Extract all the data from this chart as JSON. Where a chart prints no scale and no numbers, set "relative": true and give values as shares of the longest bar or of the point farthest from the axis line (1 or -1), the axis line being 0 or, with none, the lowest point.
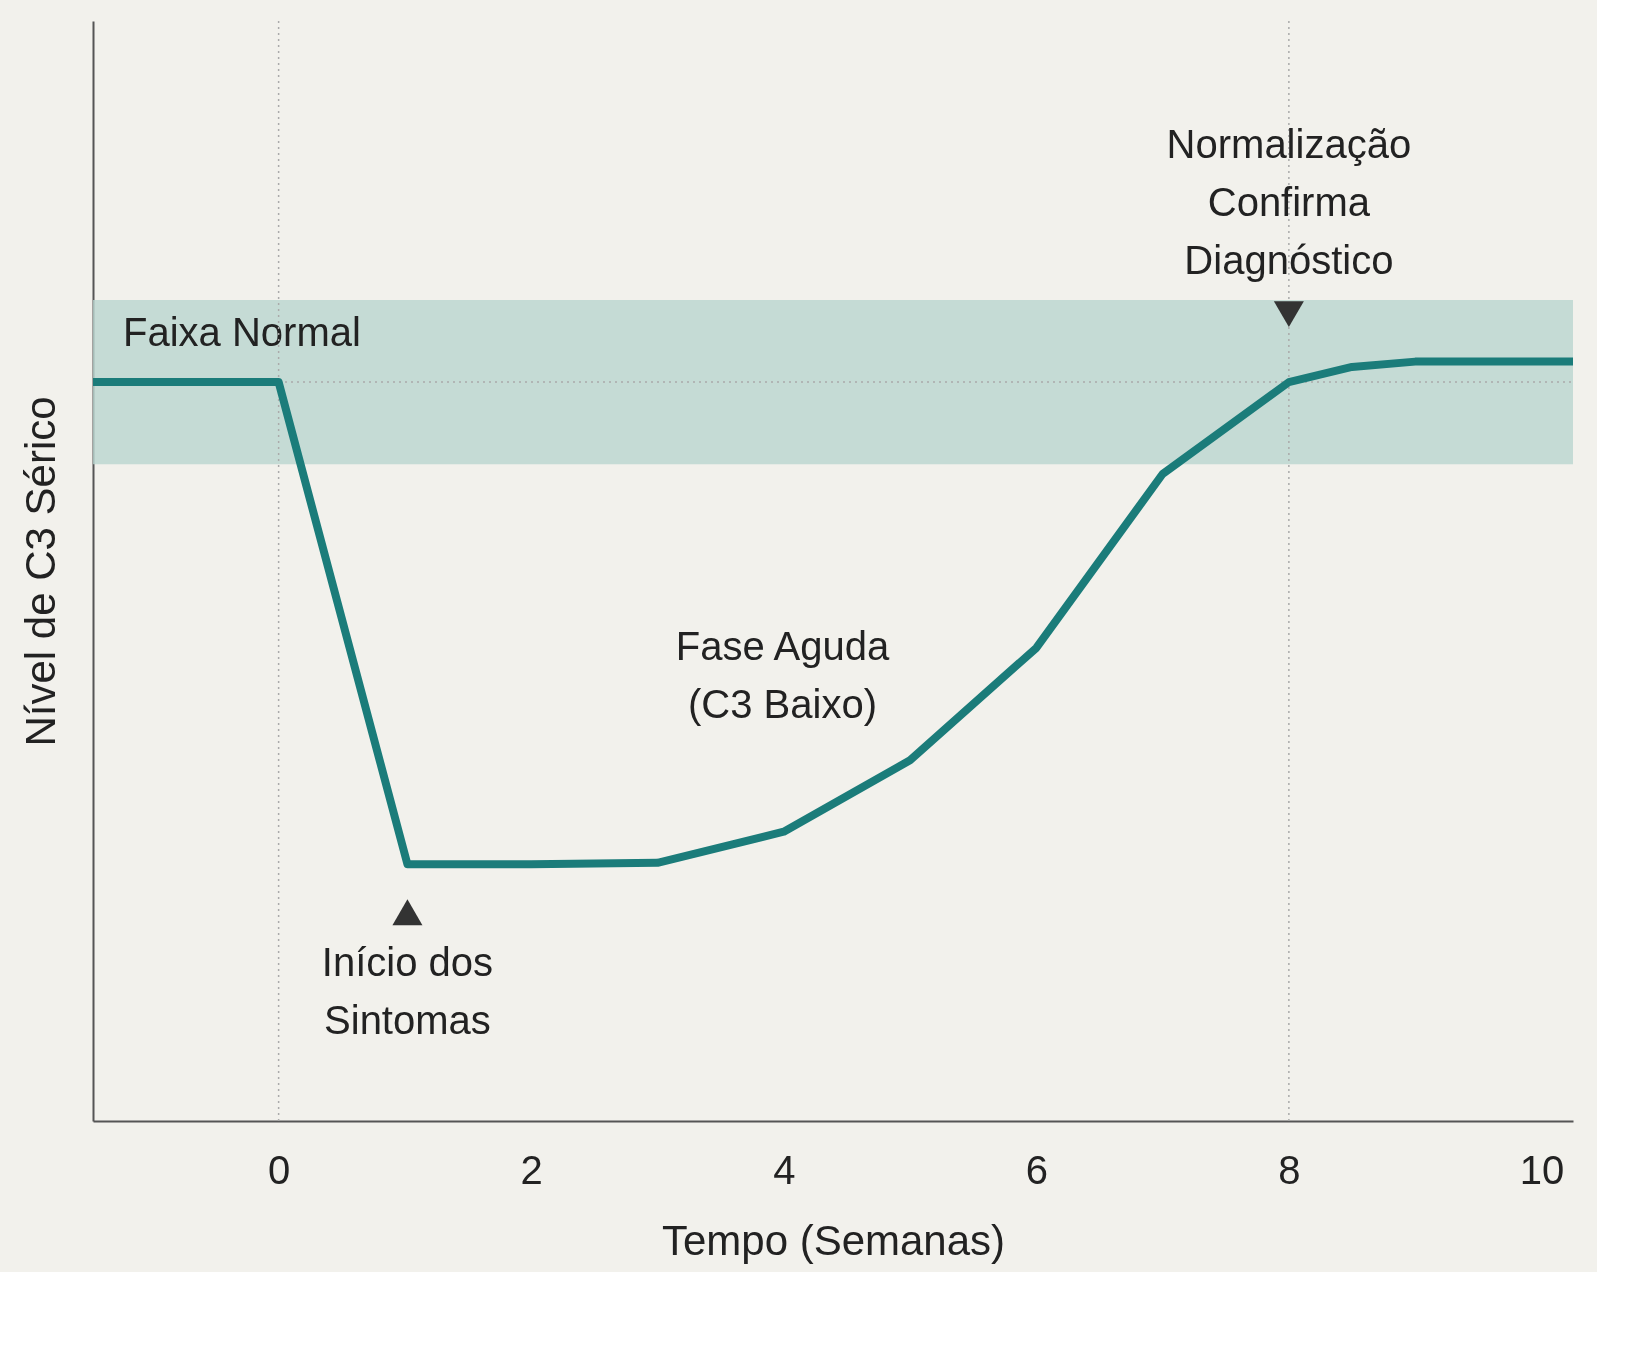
{
  "chart_data": {
    "type": "line",
    "relative": true,
    "xlabel": "Tempo (Semanas)",
    "ylabel": "Nível de C3 Sérico",
    "x": [
      -1.47,
      0,
      1.02,
      2,
      3,
      4,
      5,
      6,
      7,
      8,
      8.5,
      9,
      10.25
    ],
    "xlim": [
      -1.47,
      10.25
    ],
    "xticks": [
      0,
      2,
      4,
      6,
      8,
      10
    ],
    "series": [
      {
        "color": "#1b7c7a",
        "values": [
          0.973,
          0.973,
          0.338,
          0.338,
          0.34,
          0.381,
          0.475,
          0.623,
          0.852,
          0.973,
          0.993,
          1,
          1
        ]
      }
    ],
    "bands": [
      {
        "axis": "y",
        "from": 0.865,
        "to": 1.081,
        "label": "Faixa Normal",
        "color": "#b9d6cf"
      }
    ],
    "ref_lines": [
      {
        "axis": "x",
        "value": 0,
        "line_style": "dotted"
      },
      {
        "axis": "x",
        "value": 8,
        "line_style": "dotted"
      },
      {
        "axis": "y",
        "value": 0.973,
        "line_style": "dotted"
      }
    ],
    "annotations": [
      "Fase Aguda\n(C3 Baixo)",
      {
        "text": "Início dos\nSintomas",
        "x": 1.02,
        "y": 0.338
      },
      {
        "text": "Normalização\nConfirma\nDiagnóstico",
        "x": 8,
        "y": 0.973
      }
    ],
    "grid": false,
    "marker": "none",
    "line_style": "solid"
  }
}
